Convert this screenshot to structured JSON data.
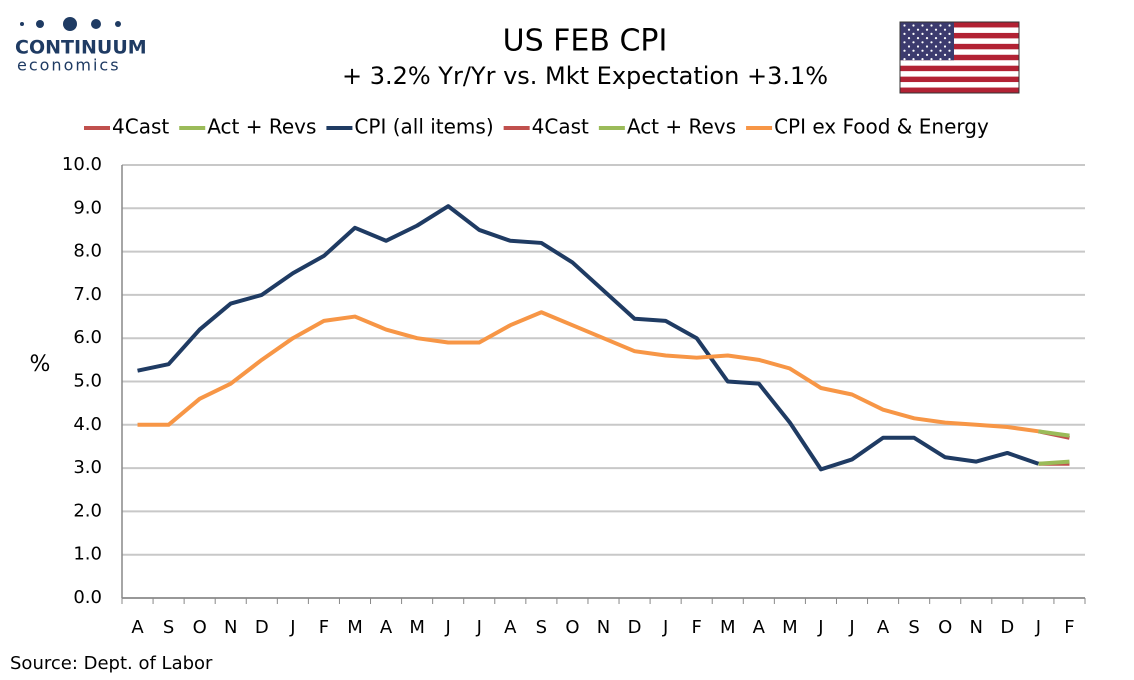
{
  "logo": {
    "name": "CONTINUUM",
    "tagline": "economics"
  },
  "chart_data": {
    "type": "line",
    "title": "US FEB CPI",
    "subtitle": "+ 3.2% Yr/Yr  vs. Mkt Expectation +3.1%",
    "y_label": "%",
    "source": "Source: Dept. of Labor",
    "categories": [
      "A",
      "S",
      "O",
      "N",
      "D",
      "J",
      "F",
      "M",
      "A",
      "M",
      "J",
      "J",
      "A",
      "S",
      "O",
      "N",
      "D",
      "J",
      "F",
      "M",
      "A",
      "M",
      "J",
      "J",
      "A",
      "S",
      "O",
      "N",
      "D",
      "J",
      "F"
    ],
    "series": [
      {
        "name": "4Cast",
        "color": "#c0504d",
        "values": [
          null,
          null,
          null,
          null,
          null,
          null,
          null,
          null,
          null,
          null,
          null,
          null,
          null,
          null,
          null,
          null,
          null,
          null,
          null,
          null,
          null,
          null,
          null,
          null,
          null,
          null,
          null,
          null,
          null,
          3.1,
          3.1
        ]
      },
      {
        "name": "Act + Revs",
        "color": "#9bbb59",
        "values": [
          null,
          null,
          null,
          null,
          null,
          null,
          null,
          null,
          null,
          null,
          null,
          null,
          null,
          null,
          null,
          null,
          null,
          null,
          null,
          null,
          null,
          null,
          null,
          null,
          null,
          null,
          null,
          null,
          null,
          3.1,
          3.15
        ]
      },
      {
        "name": "CPI (all items)",
        "color": "#1f3b63",
        "values": [
          5.25,
          5.4,
          6.2,
          6.8,
          7.0,
          7.5,
          7.9,
          8.55,
          8.25,
          8.6,
          9.05,
          8.5,
          8.25,
          8.2,
          7.75,
          7.1,
          6.45,
          6.4,
          6.0,
          5.0,
          4.95,
          4.05,
          2.97,
          3.2,
          3.7,
          3.7,
          3.25,
          3.15,
          3.35,
          3.1,
          null
        ]
      },
      {
        "name": "4Cast",
        "color": "#c0504d",
        "values": [
          null,
          null,
          null,
          null,
          null,
          null,
          null,
          null,
          null,
          null,
          null,
          null,
          null,
          null,
          null,
          null,
          null,
          null,
          null,
          null,
          null,
          null,
          null,
          null,
          null,
          null,
          null,
          null,
          null,
          3.85,
          3.7
        ]
      },
      {
        "name": "Act + Revs",
        "color": "#9bbb59",
        "values": [
          null,
          null,
          null,
          null,
          null,
          null,
          null,
          null,
          null,
          null,
          null,
          null,
          null,
          null,
          null,
          null,
          null,
          null,
          null,
          null,
          null,
          null,
          null,
          null,
          null,
          null,
          null,
          null,
          null,
          3.85,
          3.75
        ]
      },
      {
        "name": "CPI ex Food & Energy",
        "color": "#f79646",
        "values": [
          4.0,
          4.0,
          4.6,
          4.95,
          5.5,
          6.0,
          6.4,
          6.5,
          6.2,
          6.0,
          5.9,
          5.9,
          6.3,
          6.6,
          6.3,
          6.0,
          5.7,
          5.6,
          5.55,
          5.6,
          5.5,
          5.3,
          4.85,
          4.7,
          4.35,
          4.15,
          4.05,
          4.0,
          3.95,
          3.85,
          null
        ]
      }
    ],
    "ylim": [
      0,
      10
    ],
    "yticks": [
      {
        "value": 0,
        "label": "0.0"
      },
      {
        "value": 1,
        "label": "1.0"
      },
      {
        "value": 2,
        "label": "2.0"
      },
      {
        "value": 3,
        "label": "3.0"
      },
      {
        "value": 4,
        "label": "4.0"
      },
      {
        "value": 5,
        "label": "5.0"
      },
      {
        "value": 6,
        "label": "6.0"
      },
      {
        "value": 7,
        "label": "7.0"
      },
      {
        "value": 8,
        "label": "8.0"
      },
      {
        "value": 9,
        "label": "9.0"
      },
      {
        "value": 10,
        "label": "10.0"
      }
    ],
    "grid": true
  }
}
